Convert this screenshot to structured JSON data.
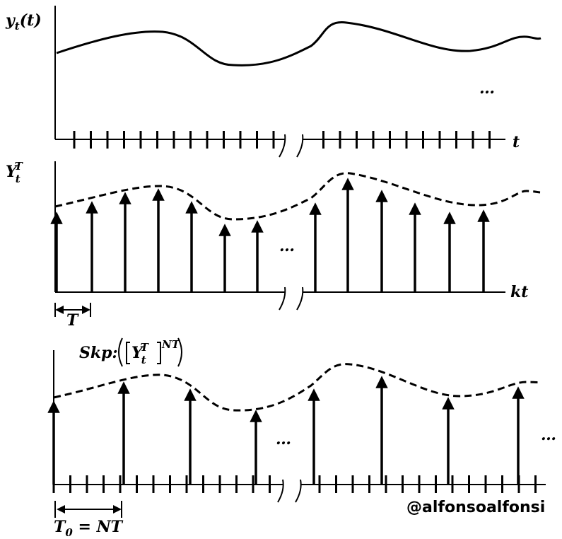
{
  "panels": [
    {
      "y_label": {
        "base": "y",
        "sub": "t",
        "tail": "(t)"
      },
      "x_label": "t",
      "ellipsis": "…"
    },
    {
      "y_label": {
        "base": "Y",
        "sub": "t",
        "sup": "T"
      },
      "x_label": "kt",
      "ellipsis": "…",
      "period_label": "T"
    },
    {
      "annotation": {
        "prefix": "Skp:",
        "base": "Y",
        "sub": "t",
        "sup": "T",
        "outer_sup": "NT"
      },
      "ellipses": [
        "…",
        "…"
      ],
      "period_label": {
        "base": "T",
        "sub": "0",
        "tail": " = NT"
      }
    }
  ],
  "watermark": "@alfonsoalfonsi"
}
